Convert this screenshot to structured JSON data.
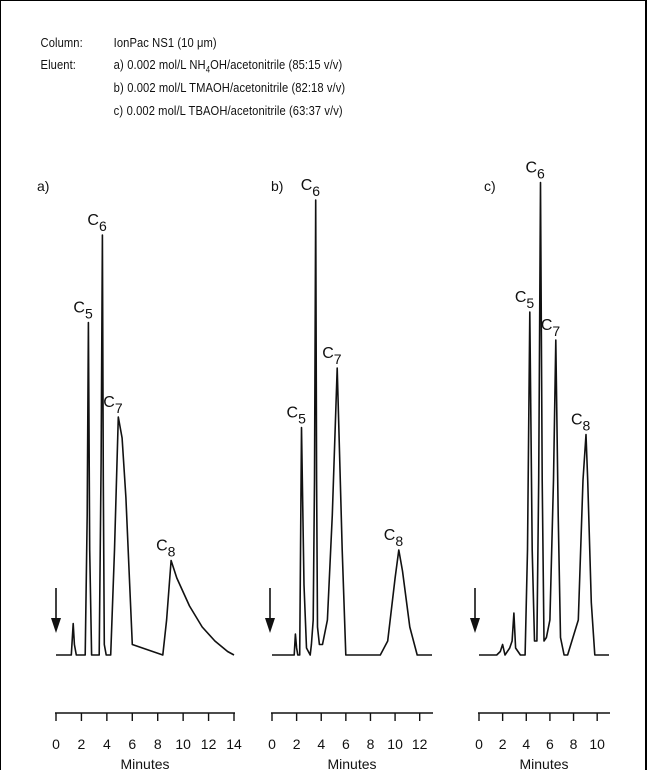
{
  "header": {
    "column_label": "Column:",
    "column_value": "IonPac NS1 (10 μm)",
    "eluent_label": "Eluent:",
    "eluents": [
      {
        "mark": "a)",
        "pre": "0.002 mol/L NH",
        "sub": "4",
        "post": "OH/acetonitrile (85:15 v/v)"
      },
      {
        "mark": "b)",
        "pre": "0.002 mol/L TMAOH/acetonitrile (82:18 v/v)",
        "sub": "",
        "post": ""
      },
      {
        "mark": "c)",
        "pre": "0.002 mol/L TBAOH/acetonitrile (63:37 v/v)",
        "sub": "",
        "post": ""
      }
    ]
  },
  "colors": {
    "line": "#111111",
    "background": "#ffffff",
    "border": "#000000"
  },
  "chart_data": [
    {
      "type": "line",
      "panel": "a)",
      "xlabel": "Minutes",
      "ylabel": "",
      "xlim": [
        0,
        14
      ],
      "xticks": [
        0,
        2,
        4,
        6,
        8,
        10,
        12,
        14
      ],
      "injection_marker": "down-arrow",
      "trace": {
        "x": [
          0.0,
          1.2,
          1.35,
          1.45,
          1.6,
          2.3,
          2.45,
          2.55,
          2.65,
          2.8,
          3.4,
          3.55,
          3.65,
          3.72,
          3.8,
          3.95,
          4.3,
          4.6,
          4.9,
          5.2,
          5.5,
          5.8,
          6.0,
          8.4,
          8.7,
          9.05,
          9.5,
          10.5,
          11.5,
          12.5,
          13.5,
          14.0
        ],
        "y": [
          0.0,
          0.0,
          0.09,
          0.03,
          0.0,
          0.0,
          0.4,
          0.95,
          0.3,
          0.0,
          0.0,
          0.55,
          1.2,
          0.5,
          0.03,
          0.0,
          0.0,
          0.3,
          0.68,
          0.62,
          0.45,
          0.2,
          0.03,
          0.0,
          0.1,
          0.27,
          0.22,
          0.14,
          0.08,
          0.04,
          0.01,
          0.0
        ]
      },
      "peaks": [
        {
          "label": "C",
          "sub": "5",
          "x": 2.55,
          "y": 0.95
        },
        {
          "label": "C",
          "sub": "6",
          "x": 3.65,
          "y": 1.2
        },
        {
          "label": "C",
          "sub": "7",
          "x": 4.9,
          "y": 0.68
        },
        {
          "label": "C",
          "sub": "8",
          "x": 9.05,
          "y": 0.27
        }
      ]
    },
    {
      "type": "line",
      "panel": "b)",
      "xlabel": "Minutes",
      "ylabel": "",
      "xlim": [
        0,
        13
      ],
      "xticks": [
        0,
        2,
        4,
        6,
        8,
        10,
        12
      ],
      "injection_marker": "down-arrow",
      "trace": {
        "x": [
          0.0,
          1.8,
          1.9,
          2.0,
          2.1,
          2.25,
          2.4,
          2.6,
          2.8,
          3.1,
          3.2,
          3.35,
          3.45,
          3.55,
          3.62,
          3.7,
          3.85,
          4.1,
          4.5,
          4.9,
          5.3,
          5.7,
          6.0,
          8.8,
          9.4,
          10.0,
          10.3,
          10.6,
          11.2,
          11.8,
          13.0
        ],
        "y": [
          0.0,
          0.0,
          0.06,
          0.02,
          0.0,
          0.0,
          0.65,
          0.2,
          0.02,
          0.0,
          0.03,
          0.1,
          0.5,
          1.3,
          0.5,
          0.08,
          0.03,
          0.03,
          0.1,
          0.4,
          0.82,
          0.3,
          0.0,
          0.0,
          0.04,
          0.22,
          0.3,
          0.24,
          0.08,
          0.0,
          0.0
        ]
      },
      "peaks": [
        {
          "label": "C",
          "sub": "5",
          "x": 2.4,
          "y": 0.65
        },
        {
          "label": "C",
          "sub": "6",
          "x": 3.55,
          "y": 1.3
        },
        {
          "label": "C",
          "sub": "7",
          "x": 5.3,
          "y": 0.82
        },
        {
          "label": "C",
          "sub": "8",
          "x": 10.3,
          "y": 0.3
        }
      ]
    },
    {
      "type": "line",
      "panel": "c)",
      "xlabel": "Minutes",
      "ylabel": "",
      "xlim": [
        0,
        11
      ],
      "xticks": [
        0,
        2,
        4,
        6,
        8,
        10
      ],
      "injection_marker": "down-arrow",
      "trace": {
        "x": [
          0.0,
          1.5,
          1.8,
          2.0,
          2.2,
          2.6,
          2.8,
          2.95,
          3.1,
          3.5,
          3.9,
          4.1,
          4.3,
          4.5,
          4.7,
          4.9,
          5.05,
          5.2,
          5.35,
          5.5,
          5.7,
          6.0,
          6.3,
          6.5,
          6.7,
          6.9,
          7.2,
          7.5,
          8.4,
          8.8,
          9.05,
          9.2,
          9.5,
          9.8,
          11.0
        ],
        "y": [
          0.0,
          0.0,
          0.01,
          0.03,
          0.0,
          0.02,
          0.04,
          0.12,
          0.02,
          0.0,
          0.0,
          0.3,
          0.98,
          0.3,
          0.04,
          0.04,
          0.5,
          1.35,
          0.5,
          0.04,
          0.05,
          0.1,
          0.5,
          0.9,
          0.4,
          0.05,
          0.0,
          0.0,
          0.1,
          0.5,
          0.63,
          0.5,
          0.15,
          0.0,
          0.0
        ]
      },
      "peaks": [
        {
          "label": "C",
          "sub": "5",
          "x": 4.3,
          "y": 0.98
        },
        {
          "label": "C",
          "sub": "6",
          "x": 5.2,
          "y": 1.35
        },
        {
          "label": "C",
          "sub": "7",
          "x": 6.5,
          "y": 0.9
        },
        {
          "label": "C",
          "sub": "8",
          "x": 9.05,
          "y": 0.63
        }
      ]
    }
  ]
}
